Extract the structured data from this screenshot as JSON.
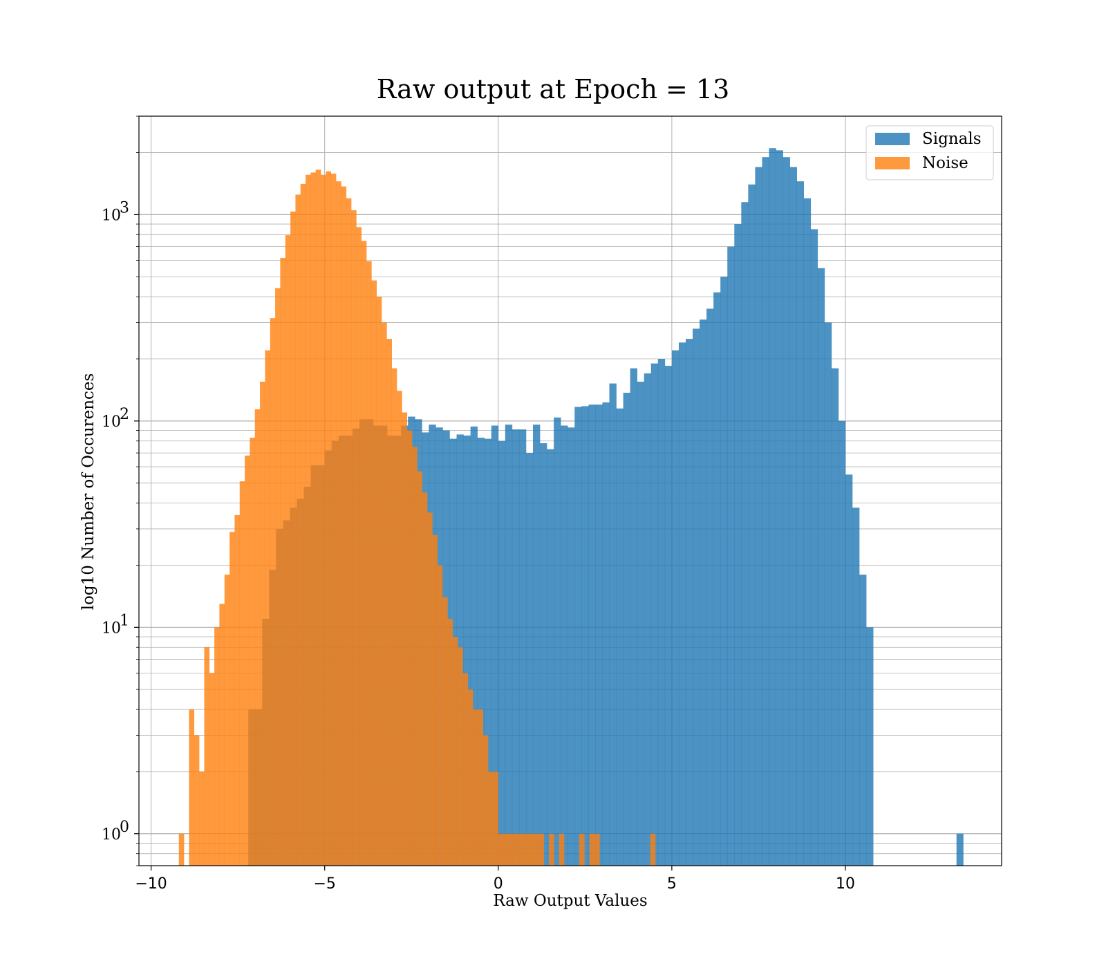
{
  "chart_data": {
    "type": "bar",
    "title": "Raw output at Epoch = 13",
    "xlabel": "Raw Output Values",
    "ylabel": "log10 Number of Occurences",
    "xlim": [
      -10.35,
      14.5
    ],
    "ylim": [
      0.7,
      3000
    ],
    "yscale": "log",
    "grid": true,
    "legend_position": "top-right",
    "x_ticks": [
      -10,
      -5,
      0,
      5,
      10
    ],
    "x_tick_labels": [
      "−10",
      "−5",
      "0",
      "5",
      "10"
    ],
    "y_ticks": [
      1,
      10,
      100,
      1000
    ],
    "y_tick_labels": [
      {
        "base": "10",
        "exp": "0"
      },
      {
        "base": "10",
        "exp": "1"
      },
      {
        "base": "10",
        "exp": "2"
      },
      {
        "base": "10",
        "exp": "3"
      }
    ],
    "series": [
      {
        "name": "Signals",
        "color": "#1f77b4",
        "bin_start": -7.2,
        "bin_width": 0.2,
        "values": [
          4,
          4,
          11,
          19,
          30,
          33,
          38,
          42,
          48,
          61,
          61,
          72,
          80,
          85,
          85,
          92,
          102,
          102,
          95,
          95,
          85,
          85,
          95,
          105,
          102,
          88,
          96,
          93,
          90,
          82,
          86,
          85,
          94,
          83,
          82,
          95,
          80,
          96,
          91,
          91,
          70,
          96,
          78,
          73,
          104,
          95,
          93,
          117,
          118,
          120,
          120,
          123,
          152,
          115,
          137,
          180,
          155,
          170,
          190,
          200,
          185,
          220,
          240,
          250,
          280,
          310,
          350,
          420,
          500,
          700,
          900,
          1150,
          1400,
          1700,
          1900,
          2100,
          2050,
          1900,
          1700,
          1450,
          1200,
          850,
          550,
          300,
          180,
          100,
          55,
          38,
          18,
          10
        ],
        "outliers": [
          {
            "x": 13.3,
            "value": 1
          }
        ]
      },
      {
        "name": "Noise",
        "color": "#ff7f0e",
        "bin_start": -9.2,
        "bin_width": 0.146,
        "values": [
          1,
          0,
          4,
          3,
          2,
          8,
          6,
          10,
          13,
          18,
          29,
          35,
          51,
          68,
          83,
          114,
          155,
          220,
          315,
          440,
          617,
          795,
          1035,
          1250,
          1410,
          1560,
          1600,
          1650,
          1560,
          1620,
          1580,
          1450,
          1370,
          1200,
          1050,
          870,
          745,
          595,
          480,
          400,
          300,
          250,
          180,
          140,
          110,
          90,
          75,
          57,
          45,
          36,
          28,
          20,
          14,
          11,
          9,
          8,
          6,
          5,
          4,
          4,
          3,
          2,
          2,
          1,
          1,
          1,
          1,
          1,
          1,
          1,
          1,
          1,
          0,
          1,
          0,
          1,
          0,
          0,
          0,
          1,
          0,
          1,
          1,
          0,
          0,
          0,
          0,
          0,
          0,
          0,
          0,
          0,
          0,
          1
        ]
      }
    ]
  }
}
